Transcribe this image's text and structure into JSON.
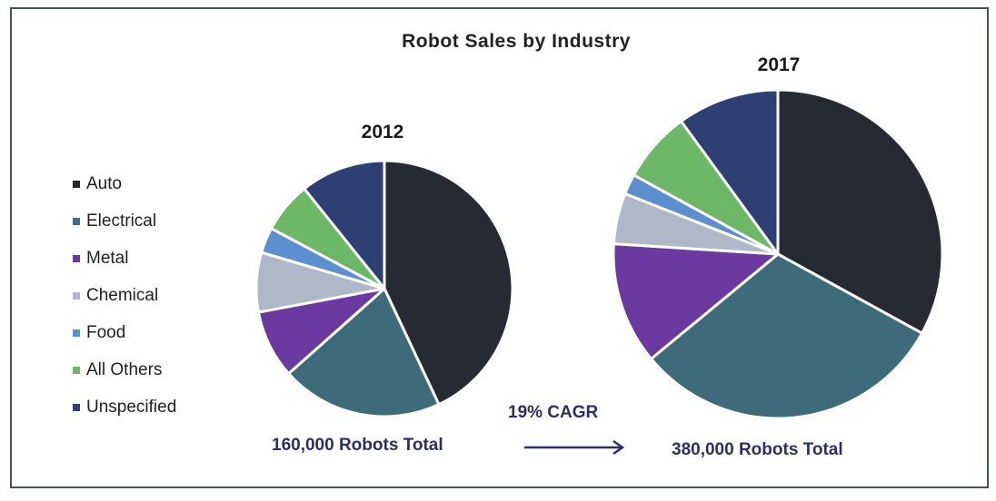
{
  "chart_data": {
    "type": "pie",
    "title": "Robot Sales by Industry",
    "legend": {
      "placement": "left",
      "items": [
        "Auto",
        "Electrical",
        "Metal",
        "Chemical",
        "Food",
        "All Others",
        "Unspecified"
      ]
    },
    "colors": {
      "Auto": "#262a33",
      "Electrical": "#3e6b7a",
      "Metal": "#6b3aa0",
      "Chemical": "#aeb8c8",
      "Food": "#5b8fd0",
      "All Others": "#6cb866",
      "Unspecified": "#2d3f73"
    },
    "pies": [
      {
        "label": "2012",
        "total_label": "160,000 Robots Total",
        "slices": [
          {
            "category": "Auto",
            "value": 40
          },
          {
            "category": "Electrical",
            "value": 19
          },
          {
            "category": "Metal",
            "value": 8
          },
          {
            "category": "Chemical",
            "value": 7
          },
          {
            "category": "Food",
            "value": 3
          },
          {
            "category": "All Others",
            "value": 6
          },
          {
            "category": "Unspecified",
            "value": 10
          }
        ]
      },
      {
        "label": "2017",
        "total_label": "380,000 Robots Total",
        "slices": [
          {
            "category": "Auto",
            "value": 33
          },
          {
            "category": "Electrical",
            "value": 31
          },
          {
            "category": "Metal",
            "value": 12
          },
          {
            "category": "Chemical",
            "value": 5
          },
          {
            "category": "Food",
            "value": 2
          },
          {
            "category": "All Others",
            "value": 7
          },
          {
            "category": "Unspecified",
            "value": 10
          }
        ]
      }
    ],
    "annotation": "19% CAGR"
  }
}
